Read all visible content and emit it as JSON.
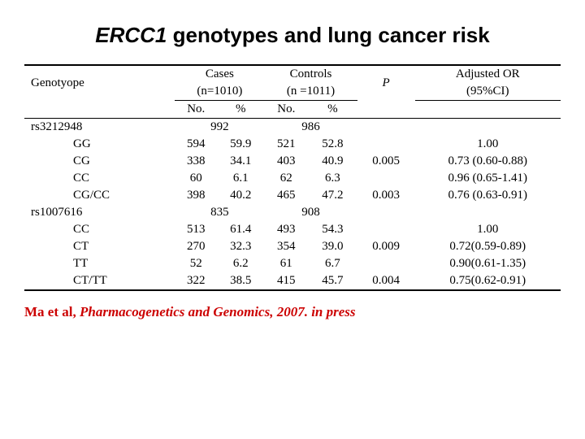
{
  "title_italic": "ERCC1",
  "title_rest": " genotypes and lung cancer risk",
  "headers": {
    "genotype": "Genotyope",
    "cases": "Cases",
    "cases_n": "(n=1010)",
    "controls": "Controls",
    "controls_n": "(n =1011)",
    "p": "P",
    "adj_or": "Adjusted OR",
    "ci": "(95%CI)",
    "no": "No.",
    "pct": "%"
  },
  "group1": {
    "name": "rs3212948",
    "cases_total": "992",
    "controls_total": "986",
    "rows": [
      {
        "label": "GG",
        "cno": "594",
        "cpct": "59.9",
        "ctrlno": "521",
        "ctrlpct": "52.8",
        "p": "",
        "or": "1.00"
      },
      {
        "label": "CG",
        "cno": "338",
        "cpct": "34.1",
        "ctrlno": "403",
        "ctrlpct": "40.9",
        "p": "0.005",
        "or": "0.73 (0.60-0.88)"
      },
      {
        "label": "CC",
        "cno": "60",
        "cpct": "6.1",
        "ctrlno": "62",
        "ctrlpct": "6.3",
        "p": "",
        "or": "0.96 (0.65-1.41)"
      },
      {
        "label": "CG/CC",
        "cno": "398",
        "cpct": "40.2",
        "ctrlno": "465",
        "ctrlpct": "47.2",
        "p": "0.003",
        "or": "0.76 (0.63-0.91)"
      }
    ]
  },
  "group2": {
    "name": "rs1007616",
    "cases_total": "835",
    "controls_total": "908",
    "rows": [
      {
        "label": "CC",
        "cno": "513",
        "cpct": "61.4",
        "ctrlno": "493",
        "ctrlpct": "54.3",
        "p": "",
        "or": "1.00"
      },
      {
        "label": "CT",
        "cno": "270",
        "cpct": "32.3",
        "ctrlno": "354",
        "ctrlpct": "39.0",
        "p": "0.009",
        "or": "0.72(0.59-0.89)"
      },
      {
        "label": "TT",
        "cno": "52",
        "cpct": "6.2",
        "ctrlno": "61",
        "ctrlpct": "6.7",
        "p": "",
        "or": "0.90(0.61-1.35)"
      },
      {
        "label": "CT/TT",
        "cno": "322",
        "cpct": "38.5",
        "ctrlno": "415",
        "ctrlpct": "45.7",
        "p": "0.004",
        "or": "0.75(0.62-0.91)"
      }
    ]
  },
  "citation": {
    "pre": "Ma et al, ",
    "journal": "Pharmacogenetics and Genomics, 2007. in press"
  }
}
